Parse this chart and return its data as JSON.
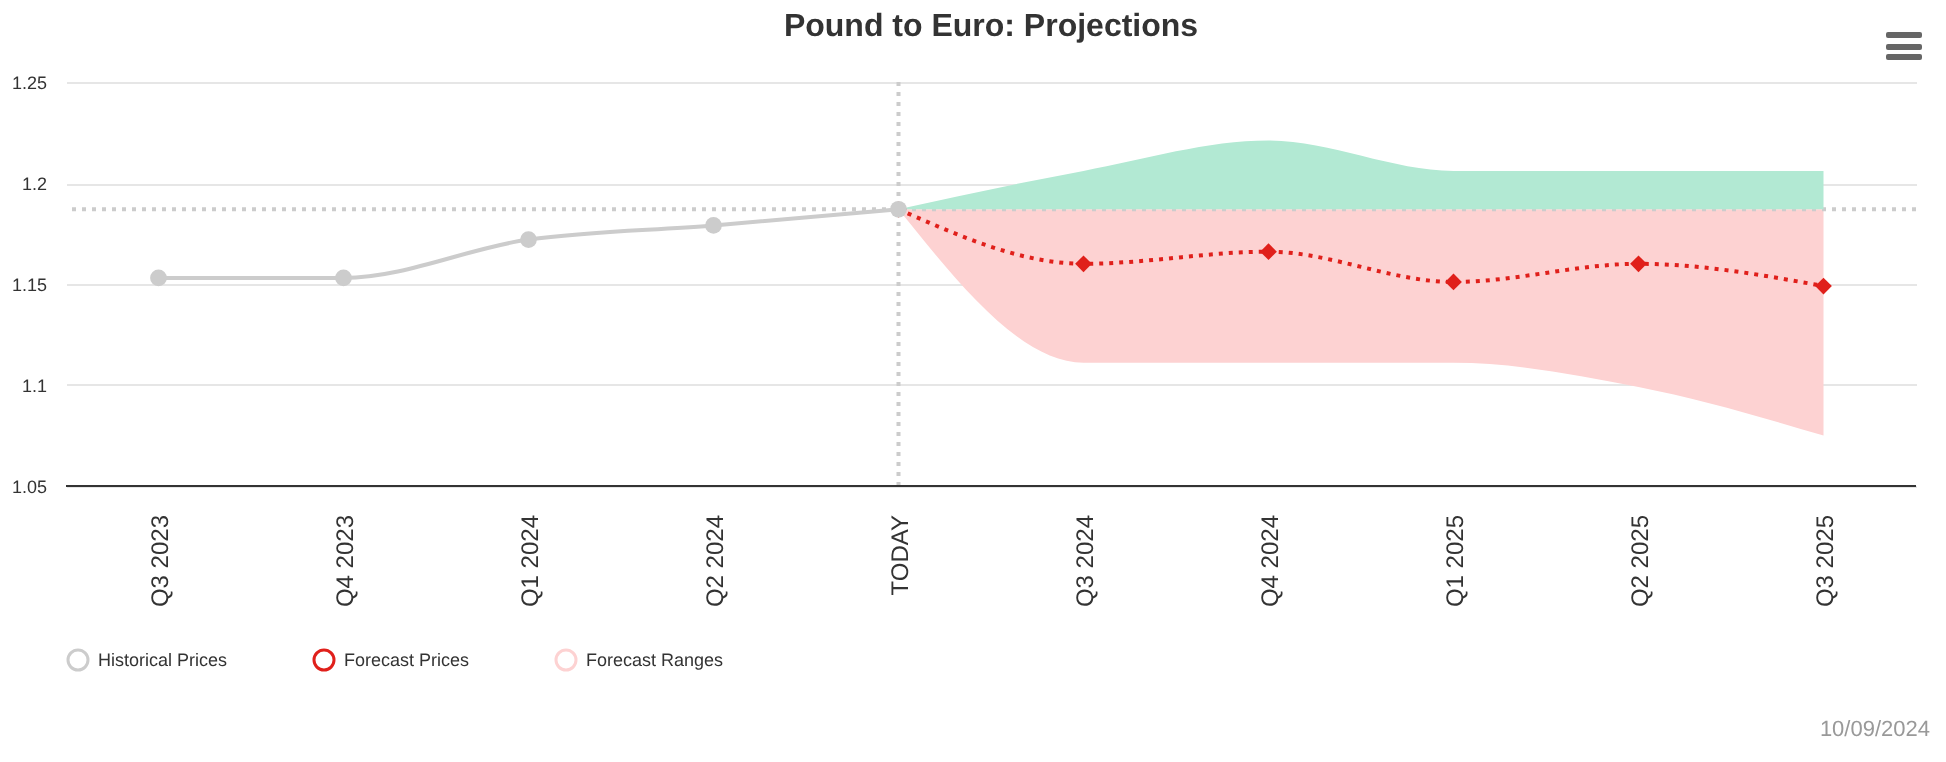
{
  "chart_data": {
    "type": "line",
    "title": "Pound to Euro: Projections",
    "categories": [
      "Q3 2023",
      "Q4 2023",
      "Q1 2024",
      "Q2 2024",
      "TODAY",
      "Q3 2024",
      "Q4 2024",
      "Q1 2025",
      "Q2 2025",
      "Q3 2025"
    ],
    "series": [
      {
        "name": "Historical Prices",
        "color": "#cccccc",
        "line_style": "solid",
        "marker": "circle",
        "x": [
          "Q3 2023",
          "Q4 2023",
          "Q1 2024",
          "Q2 2024",
          "TODAY"
        ],
        "values": [
          1.153,
          1.153,
          1.172,
          1.179,
          1.187
        ]
      },
      {
        "name": "Forecast Prices",
        "color": "#e0201b",
        "line_style": "dotted",
        "marker": "diamond",
        "x": [
          "TODAY",
          "Q3 2024",
          "Q4 2024",
          "Q1 2025",
          "Q2 2025",
          "Q3 2025"
        ],
        "values": [
          1.187,
          1.16,
          1.166,
          1.151,
          1.16,
          1.149
        ]
      },
      {
        "name": "Forecast Ranges",
        "type": "area",
        "color": "#fdd2d2",
        "x": [
          "TODAY",
          "Q3 2024",
          "Q4 2024",
          "Q1 2025",
          "Q2 2025",
          "Q3 2025"
        ],
        "values": [
          null,
          null,
          null,
          null,
          null,
          null
        ],
        "lower": [
          1.187,
          1.111,
          1.111,
          1.111,
          1.099,
          1.075
        ],
        "upper": [
          1.187,
          1.187,
          1.187,
          1.187,
          1.187,
          1.187
        ]
      },
      {
        "type": "area",
        "color": "#b2e9d3",
        "x": [
          "TODAY",
          "Q3 2024",
          "Q4 2024",
          "Q1 2025",
          "Q2 2025",
          "Q3 2025"
        ],
        "values": [
          null,
          null,
          null,
          null,
          null,
          null
        ],
        "lower": [
          1.187,
          1.187,
          1.187,
          1.187,
          1.187,
          1.187
        ],
        "upper": [
          1.187,
          1.206,
          1.221,
          1.206,
          1.206,
          1.206
        ]
      }
    ],
    "ylim": [
      1.05,
      1.25
    ],
    "yticks": [
      1.05,
      1.1,
      1.15,
      1.2,
      1.25
    ],
    "grid": "y",
    "legend": "bottom",
    "ref_lines": [
      {
        "axis": "y",
        "value": 1.187,
        "color": "#cccccc",
        "line_style": "dotted"
      },
      {
        "axis": "x",
        "value": "TODAY",
        "color": "#cccccc",
        "line_style": "dotted"
      }
    ],
    "annotations": [
      "10/09/2024"
    ]
  }
}
